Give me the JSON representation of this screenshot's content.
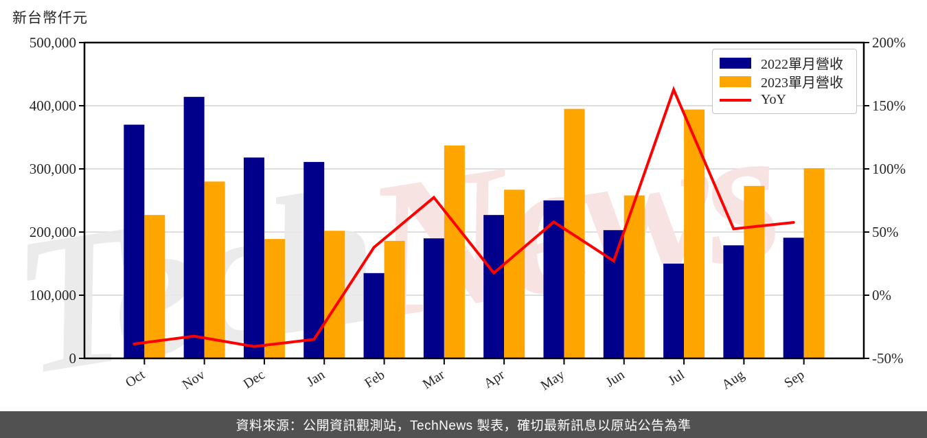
{
  "title": {
    "text": "新台幣仟元"
  },
  "legend": {
    "items": [
      {
        "label": "2022單月營收",
        "color": "#00008B",
        "type": "box"
      },
      {
        "label": "2023單月營收",
        "color": "#FFA500",
        "type": "box"
      },
      {
        "label": "YoY",
        "color": "#FF0000",
        "type": "line"
      }
    ]
  },
  "watermark": {
    "part1": "Tech",
    "part2": "News",
    "color1": "#eaeaea",
    "color2": "#f8e2e2"
  },
  "footer": {
    "text": "資料來源：公開資訊觀測站，TechNews 製表，確切最新訊息以原站公告為準",
    "bg": "#515151",
    "fg": "#ffffff"
  },
  "chart_data": {
    "type": "bar+line",
    "categories": [
      "Oct",
      "Nov",
      "Dec",
      "Jan",
      "Feb",
      "Mar",
      "Apr",
      "May",
      "Jun",
      "Jul",
      "Aug",
      "Sep"
    ],
    "series": [
      {
        "name": "2022單月營收",
        "type": "bar",
        "axis": "left",
        "color": "#00008B",
        "values": [
          370000,
          414000,
          318000,
          311000,
          135000,
          190000,
          227000,
          250000,
          203000,
          150000,
          179000,
          191000
        ]
      },
      {
        "name": "2023單月營收",
        "type": "bar",
        "axis": "left",
        "color": "#FFA500",
        "values": [
          227000,
          280000,
          189000,
          202000,
          186000,
          337000,
          267000,
          395000,
          258000,
          394000,
          273000,
          301000
        ]
      },
      {
        "name": "YoY",
        "type": "line",
        "axis": "right",
        "color": "#FF0000",
        "values_pct": [
          -38.6,
          -32.4,
          -40.6,
          -35.0,
          37.8,
          77.4,
          17.6,
          58.0,
          27.1,
          162.7,
          52.5,
          57.6
        ]
      }
    ],
    "left_axis": {
      "title": "新台幣仟元",
      "min": 0,
      "max": 500000,
      "tick_step": 100000,
      "tick_labels": [
        "0",
        "100,000",
        "200,000",
        "300,000",
        "400,000",
        "500,000"
      ]
    },
    "right_axis": {
      "min": -50,
      "max": 200,
      "tick_step": 50,
      "tick_labels": [
        "-50%",
        "0%",
        "50%",
        "100%",
        "150%",
        "200%"
      ]
    },
    "grid": "horizontal",
    "legend_position": "upper-right"
  }
}
